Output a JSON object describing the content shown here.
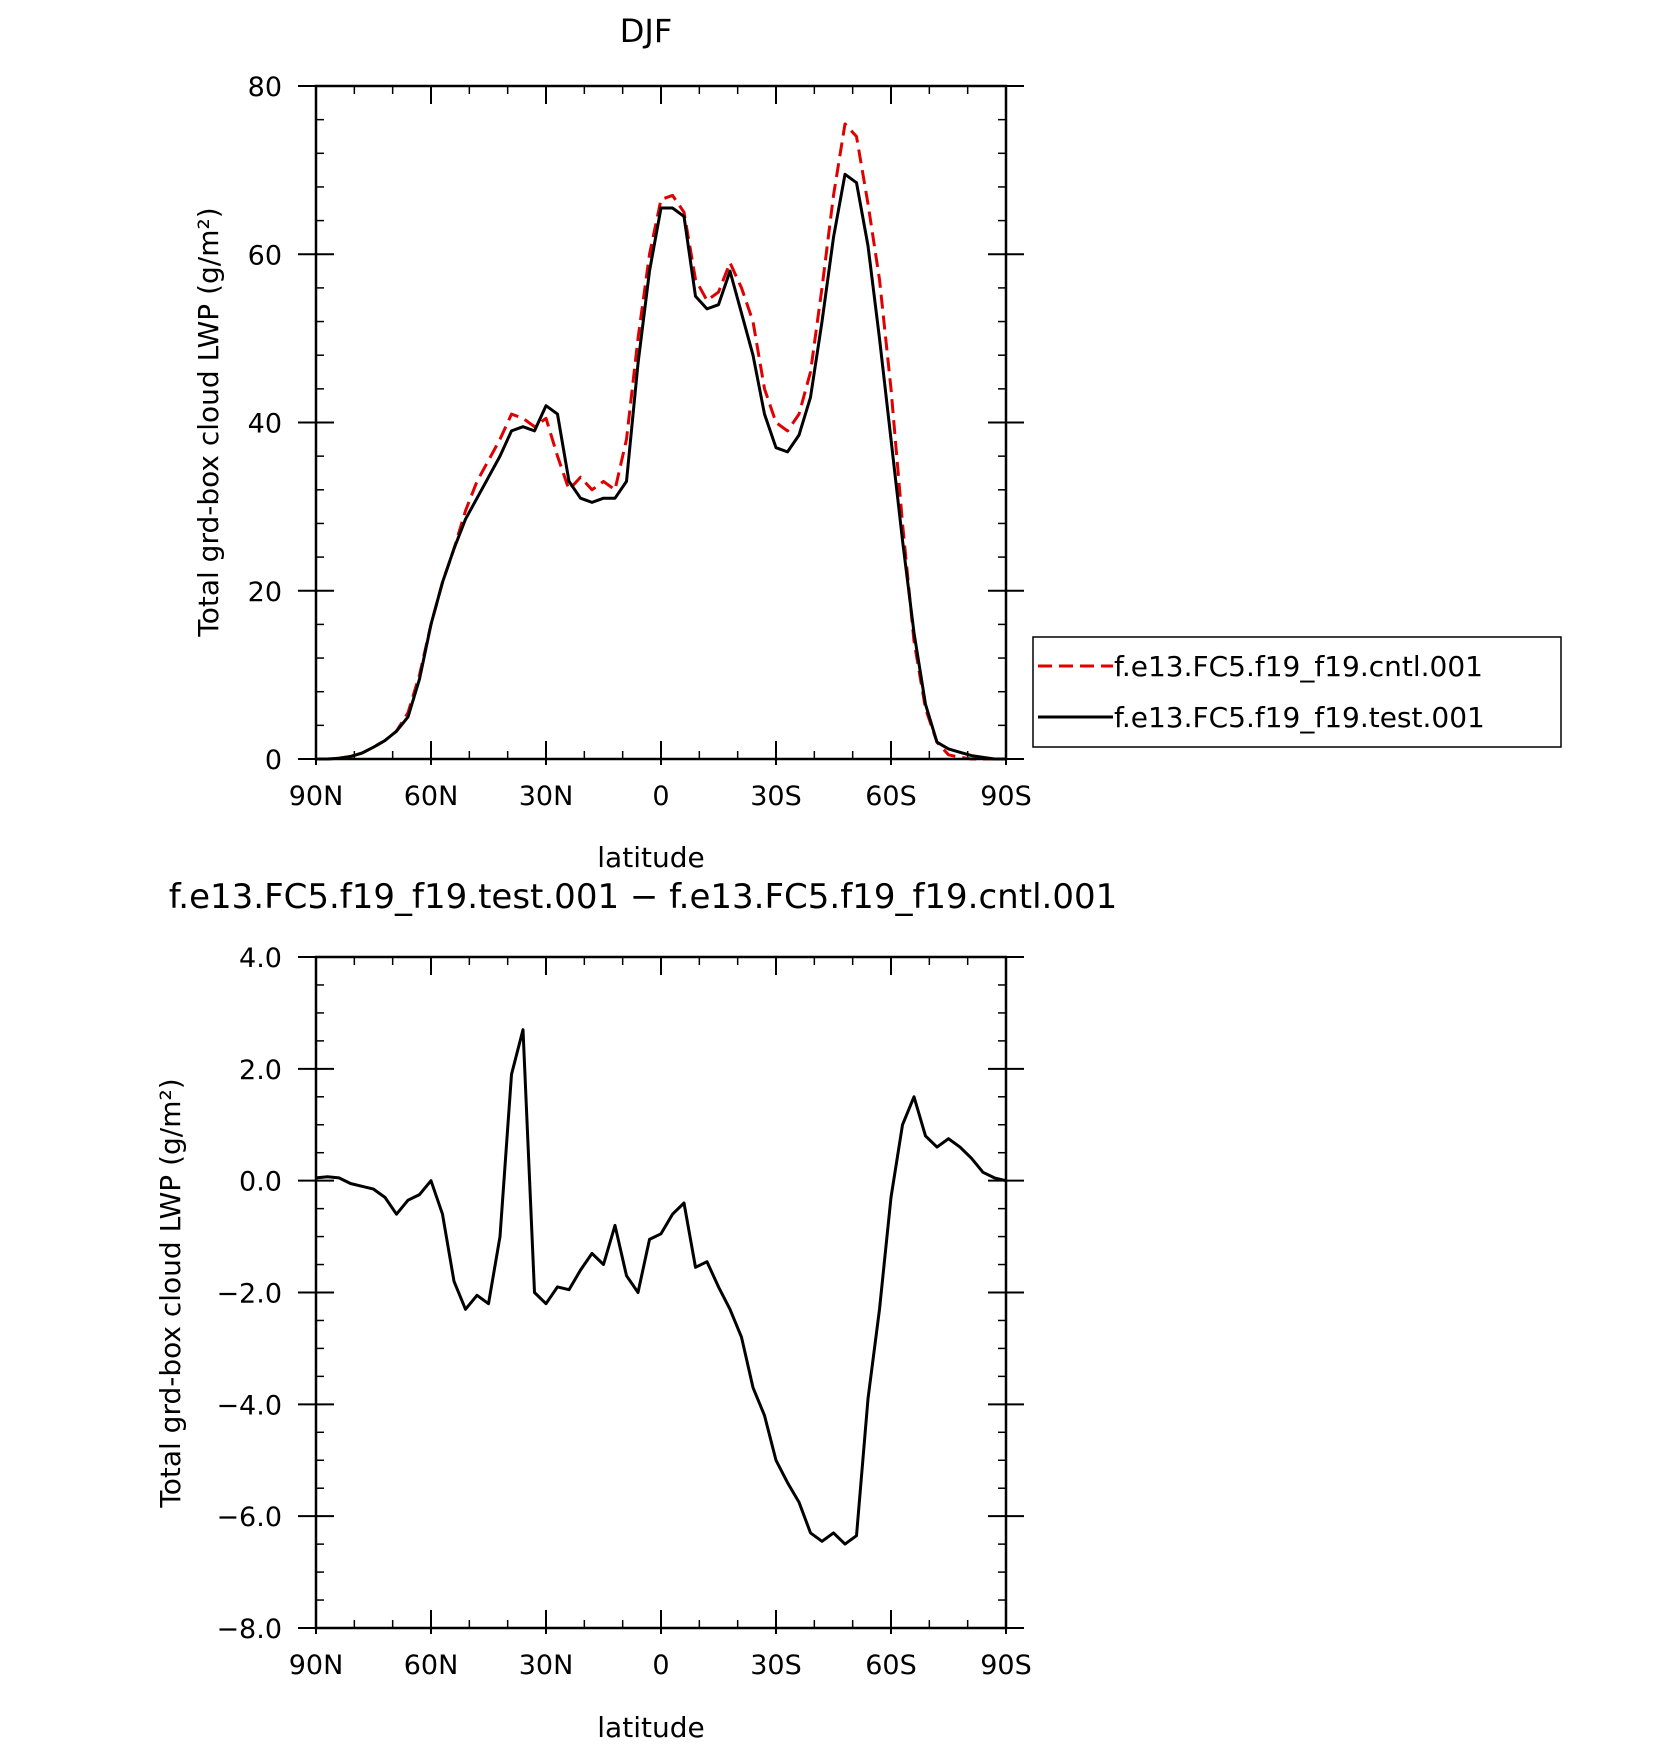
{
  "chart_data": [
    {
      "type": "line",
      "title": "DJF",
      "xlabel": "latitude",
      "ylabel": "Total grd-box cloud LWP (g/m²)",
      "xlim": [
        90,
        -90
      ],
      "ylim": [
        0,
        80
      ],
      "x_ticks": [
        {
          "value": 90,
          "label": "90N"
        },
        {
          "value": 60,
          "label": "60N"
        },
        {
          "value": 30,
          "label": "30N"
        },
        {
          "value": 0,
          "label": "0"
        },
        {
          "value": -30,
          "label": "30S"
        },
        {
          "value": -60,
          "label": "60S"
        },
        {
          "value": -90,
          "label": "90S"
        }
      ],
      "y_ticks": [
        {
          "value": 0,
          "label": "0"
        },
        {
          "value": 20,
          "label": "20"
        },
        {
          "value": 40,
          "label": "40"
        },
        {
          "value": 60,
          "label": "60"
        },
        {
          "value": 80,
          "label": "80"
        }
      ],
      "legend_position": "right",
      "series": [
        {
          "name": "f.e13.FC5.f19_f19.cntl.001",
          "color": "#e00000",
          "dash": "dashed",
          "x": [
            90,
            87,
            84,
            81,
            78,
            75,
            72,
            69,
            66,
            63,
            60,
            57,
            54,
            51,
            48,
            45,
            42,
            39,
            36,
            33,
            30,
            27,
            24,
            21,
            18,
            15,
            12,
            9,
            6,
            3,
            0,
            -3,
            -6,
            -9,
            -12,
            -15,
            -18,
            -21,
            -24,
            -27,
            -30,
            -33,
            -36,
            -39,
            -42,
            -45,
            -48,
            -51,
            -54,
            -57,
            -60,
            -63,
            -66,
            -69,
            -72,
            -75,
            -78,
            -81,
            -84,
            -87,
            -90
          ],
          "y": [
            0,
            0,
            0.1,
            0.3,
            0.7,
            1.4,
            2.2,
            3.3,
            5.5,
            10,
            16,
            21,
            25,
            29.5,
            33,
            35.5,
            38,
            41,
            40.5,
            39.5,
            40.5,
            36,
            32,
            33.5,
            32,
            33,
            32,
            38,
            50,
            60,
            66.5,
            67,
            65,
            57,
            54.5,
            55.5,
            59,
            56,
            52,
            44,
            40,
            39,
            41,
            46,
            56,
            67,
            75.5,
            74,
            66,
            57,
            44,
            28,
            14,
            6,
            2,
            0.5,
            0.2,
            0,
            0,
            0,
            0
          ]
        },
        {
          "name": "f.e13.FC5.f19_f19.test.001",
          "color": "#000000",
          "dash": "solid",
          "x": [
            90,
            87,
            84,
            81,
            78,
            75,
            72,
            69,
            66,
            63,
            60,
            57,
            54,
            51,
            48,
            45,
            42,
            39,
            36,
            33,
            30,
            27,
            24,
            21,
            18,
            15,
            12,
            9,
            6,
            3,
            0,
            -3,
            -6,
            -9,
            -12,
            -15,
            -18,
            -21,
            -24,
            -27,
            -30,
            -33,
            -36,
            -39,
            -42,
            -45,
            -48,
            -51,
            -54,
            -57,
            -60,
            -63,
            -66,
            -69,
            -72,
            -75,
            -78,
            -81,
            -84,
            -87,
            -90
          ],
          "y": [
            0,
            0,
            0.1,
            0.3,
            0.7,
            1.4,
            2.2,
            3.3,
            5,
            9.5,
            16,
            21,
            25,
            28.5,
            31,
            33.5,
            36,
            39,
            39.5,
            39,
            42,
            41,
            33,
            31,
            30.5,
            31,
            31,
            33,
            47,
            58,
            65.5,
            65.5,
            64.5,
            55,
            53.5,
            54,
            58,
            53,
            48,
            41,
            37,
            36.5,
            38.5,
            43,
            52,
            62,
            69.5,
            68.5,
            61,
            50,
            38,
            26,
            15,
            6.5,
            2,
            1.2,
            0.8,
            0.4,
            0.2,
            0,
            0
          ]
        }
      ]
    },
    {
      "type": "line",
      "title": "f.e13.FC5.f19_f19.test.001 − f.e13.FC5.f19_f19.cntl.001",
      "xlabel": "latitude",
      "ylabel": "Total grd-box cloud LWP (g/m²)",
      "xlim": [
        90,
        -90
      ],
      "ylim": [
        -8,
        4
      ],
      "x_ticks": [
        {
          "value": 90,
          "label": "90N"
        },
        {
          "value": 60,
          "label": "60N"
        },
        {
          "value": 30,
          "label": "30N"
        },
        {
          "value": 0,
          "label": "0"
        },
        {
          "value": -30,
          "label": "30S"
        },
        {
          "value": -60,
          "label": "60S"
        },
        {
          "value": -90,
          "label": "90S"
        }
      ],
      "y_ticks": [
        {
          "value": -8,
          "label": "−8.0"
        },
        {
          "value": -6,
          "label": "−6.0"
        },
        {
          "value": -4,
          "label": "−4.0"
        },
        {
          "value": -2,
          "label": "−2.0"
        },
        {
          "value": 0,
          "label": "0.0"
        },
        {
          "value": 2,
          "label": "2.0"
        },
        {
          "value": 4,
          "label": "4.0"
        }
      ],
      "series": [
        {
          "color": "#000000",
          "dash": "solid",
          "x": [
            90,
            87,
            84,
            81,
            78,
            75,
            72,
            69,
            66,
            63,
            60,
            57,
            54,
            51,
            48,
            45,
            42,
            39,
            36,
            33,
            30,
            27,
            24,
            21,
            18,
            15,
            12,
            9,
            6,
            3,
            0,
            -3,
            -6,
            -9,
            -12,
            -15,
            -18,
            -21,
            -24,
            -27,
            -30,
            -33,
            -36,
            -39,
            -42,
            -45,
            -48,
            -51,
            -54,
            -57,
            -60,
            -63,
            -66,
            -69,
            -72,
            -75,
            -78,
            -81,
            -84,
            -87,
            -90
          ],
          "y": [
            0.05,
            0.07,
            0.05,
            -0.05,
            -0.1,
            -0.15,
            -0.3,
            -0.6,
            -0.35,
            -0.25,
            0,
            -0.6,
            -1.8,
            -2.3,
            -2.05,
            -2.2,
            -1.0,
            1.9,
            2.7,
            -2.0,
            -2.2,
            -1.9,
            -1.95,
            -1.6,
            -1.3,
            -1.5,
            -0.8,
            -1.7,
            -2.0,
            -1.05,
            -0.95,
            -0.6,
            -0.4,
            -1.55,
            -1.45,
            -1.9,
            -2.3,
            -2.8,
            -3.7,
            -4.2,
            -5.0,
            -5.4,
            -5.75,
            -6.3,
            -6.45,
            -6.3,
            -6.5,
            -6.35,
            -3.9,
            -2.3,
            -0.3,
            1.0,
            1.5,
            0.8,
            0.6,
            0.75,
            0.6,
            0.4,
            0.15,
            0.05,
            0
          ]
        }
      ]
    }
  ]
}
